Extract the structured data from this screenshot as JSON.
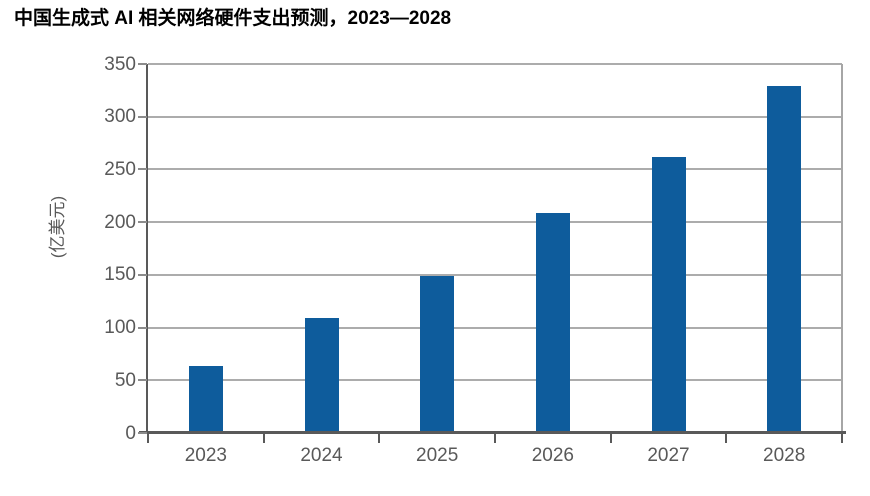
{
  "title": "中国生成式 AI 相关网络硬件支出预测，2023—2028",
  "chart_data": {
    "type": "bar",
    "title": "中国生成式 AI 相关网络硬件支出预测，2023—2028",
    "categories": [
      "2023",
      "2024",
      "2025",
      "2026",
      "2027",
      "2028"
    ],
    "values": [
      64,
      109,
      149,
      209,
      262,
      329
    ],
    "xlabel": "",
    "ylabel": "(亿美元)",
    "ylim": [
      0,
      350
    ],
    "y_ticks": [
      0,
      50,
      100,
      150,
      200,
      250,
      300,
      350
    ],
    "grid": "horizontal-gridlines-on",
    "legend": "none",
    "bar_color": "#0E5C9C"
  },
  "colors": {
    "bar": "#0E5C9C",
    "gridline": "#acacac",
    "axis": "#595959",
    "right_border": "#a6a6a6",
    "tick_label": "#595959",
    "title_text": "#000000",
    "background": "#ffffff"
  }
}
